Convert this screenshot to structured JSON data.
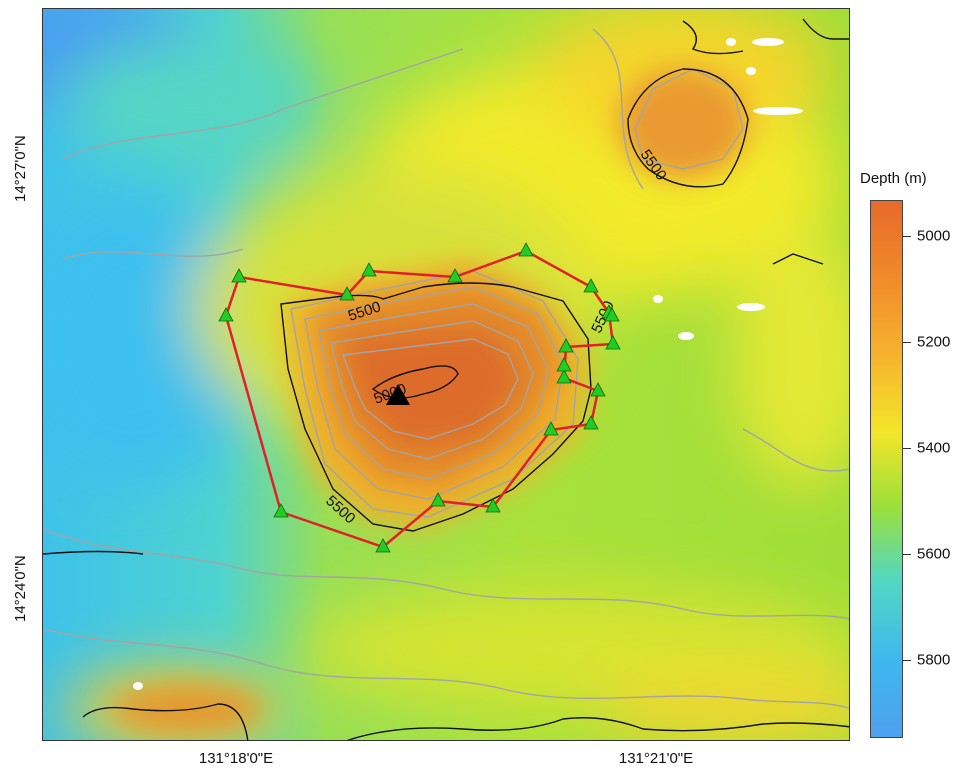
{
  "map": {
    "latitude_labels": [
      "14°27'0\"N",
      "14°24'0\"N"
    ],
    "longitude_labels": [
      "131°18'0\"E",
      "131°21'0\"E"
    ],
    "contour_labels": [
      "5500",
      "5500",
      "5500",
      "5000",
      "5500"
    ]
  },
  "legend": {
    "title": "Depth (m)",
    "ticks": [
      "5000",
      "5200",
      "5400",
      "5600",
      "5800"
    ],
    "colors": [
      "#e8692a",
      "#f08a2a",
      "#f6b32e",
      "#f3e62a",
      "#9be03a",
      "#52d7c4",
      "#3fb7ef",
      "#4fa0ee"
    ]
  },
  "survey": {
    "boundary_color": "#e0202a",
    "marker_color": "#22cc22",
    "station_count": 20,
    "center_marker": "black-triangle"
  }
}
